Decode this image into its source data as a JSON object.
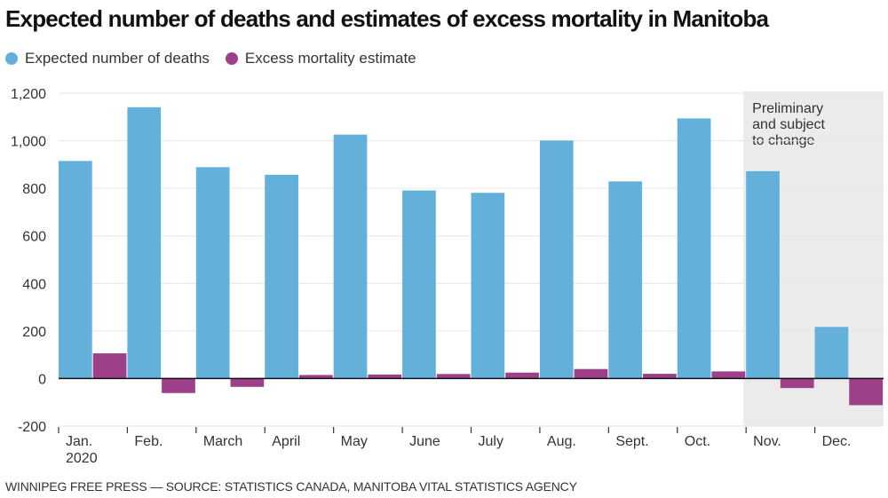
{
  "title": "Expected number of deaths and estimates of excess mortality in Manitoba",
  "source": "WINNIPEG FREE PRESS — SOURCE: STATISTICS CANADA, MANITOBA VITAL STATISTICS AGENCY",
  "legend": [
    {
      "label": "Expected number of deaths",
      "color": "#63b0db",
      "icon": "circle-icon"
    },
    {
      "label": "Excess mortality estimate",
      "color": "#9e3f8a",
      "icon": "circle-icon"
    }
  ],
  "chart_data": {
    "type": "bar",
    "title": "Expected number of deaths and estimates of excess mortality in Manitoba",
    "xlabel": "",
    "ylabel": "",
    "categories": [
      "Jan.",
      "Feb.",
      "March",
      "April",
      "May",
      "June",
      "July",
      "Aug.",
      "Sept.",
      "Oct.",
      "Nov.",
      "Dec."
    ],
    "category_sublabels": [
      "2020",
      "",
      "",
      "",
      "",
      "",
      "",
      "",
      "",
      "",
      "",
      ""
    ],
    "series": [
      {
        "name": "Expected number of deaths",
        "color": "#63b0db",
        "values": [
          915,
          1141,
          889,
          857,
          1026,
          791,
          781,
          1001,
          829,
          1094,
          872,
          217
        ]
      },
      {
        "name": "Excess mortality estimate",
        "color": "#9e3f8a",
        "values": [
          106,
          -61,
          -35,
          15,
          17,
          19,
          25,
          40,
          20,
          30,
          -40,
          -112
        ]
      }
    ],
    "ylim": [
      -200,
      1200
    ],
    "yticks": [
      -200,
      0,
      200,
      400,
      600,
      800,
      1000,
      1200
    ],
    "ytick_labels": [
      "-200",
      "0",
      "200",
      "400",
      "600",
      "800",
      "1,000",
      "1,200"
    ],
    "grid": true,
    "legend_position": "top-left",
    "shaded_region": {
      "from_category": "Nov.",
      "to_category": "Dec.",
      "color": "#ebebeb",
      "annotation": [
        "Preliminary",
        "and subject",
        "to change"
      ]
    }
  }
}
